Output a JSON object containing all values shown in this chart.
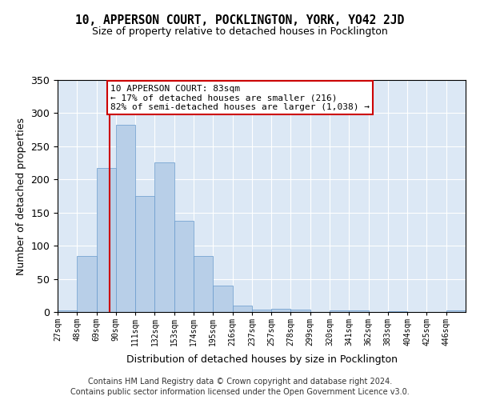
{
  "title": "10, APPERSON COURT, POCKLINGTON, YORK, YO42 2JD",
  "subtitle": "Size of property relative to detached houses in Pocklington",
  "xlabel": "Distribution of detached houses by size in Pocklington",
  "ylabel": "Number of detached properties",
  "categories": [
    "27sqm",
    "48sqm",
    "69sqm",
    "90sqm",
    "111sqm",
    "132sqm",
    "153sqm",
    "174sqm",
    "195sqm",
    "216sqm",
    "237sqm",
    "257sqm",
    "278sqm",
    "299sqm",
    "320sqm",
    "341sqm",
    "362sqm",
    "383sqm",
    "404sqm",
    "425sqm",
    "446sqm"
  ],
  "values": [
    3,
    85,
    217,
    283,
    175,
    226,
    137,
    85,
    40,
    10,
    4,
    5,
    4,
    0,
    2,
    3,
    0,
    1,
    0,
    0,
    2
  ],
  "bar_color": "#b8cfe8",
  "bar_edge_color": "#6699cc",
  "vline_color": "#cc0000",
  "annotation_text": "10 APPERSON COURT: 83sqm\n← 17% of detached houses are smaller (216)\n82% of semi-detached houses are larger (1,038) →",
  "ylim": [
    0,
    350
  ],
  "yticks": [
    0,
    50,
    100,
    150,
    200,
    250,
    300,
    350
  ],
  "background_color": "#dce8f5",
  "footer1": "Contains HM Land Registry data © Crown copyright and database right 2024.",
  "footer2": "Contains public sector information licensed under the Open Government Licence v3.0.",
  "vline_bin_index": 2
}
